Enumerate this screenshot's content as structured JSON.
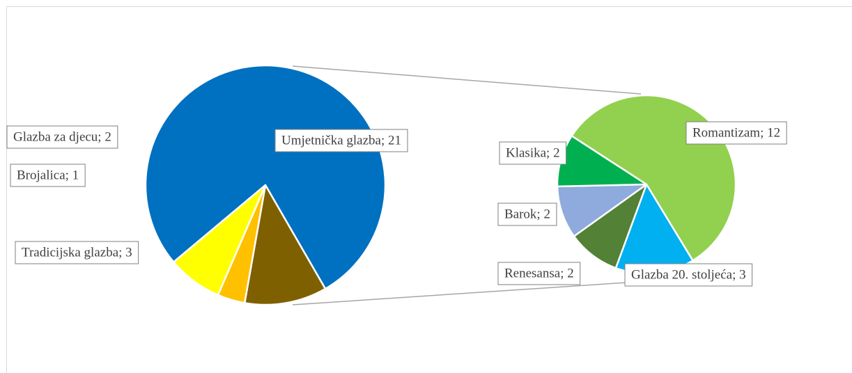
{
  "chart_data": [
    {
      "type": "pie",
      "values": [
        21,
        3,
        1,
        2
      ],
      "value_labels": [
        "Umjetnička glazba; 21",
        "Tradicijska glazba; 3",
        "Brojalica; 1",
        "Glazba za djecu; 2"
      ],
      "colors": [
        "#0070c0",
        "#7f6000",
        "#ffc000",
        "#ffff00"
      ]
    },
    {
      "type": "pie",
      "values": [
        12,
        3,
        2,
        2,
        2
      ],
      "value_labels": [
        "Romantizam; 12",
        "Glazba 20. stoljeća; 3",
        "Renesansa; 2",
        "Barok; 2",
        "Klasika; 2"
      ],
      "colors": [
        "#92d050",
        "#00b0f0",
        "#538135",
        "#8faadc",
        "#00b050"
      ]
    }
  ]
}
